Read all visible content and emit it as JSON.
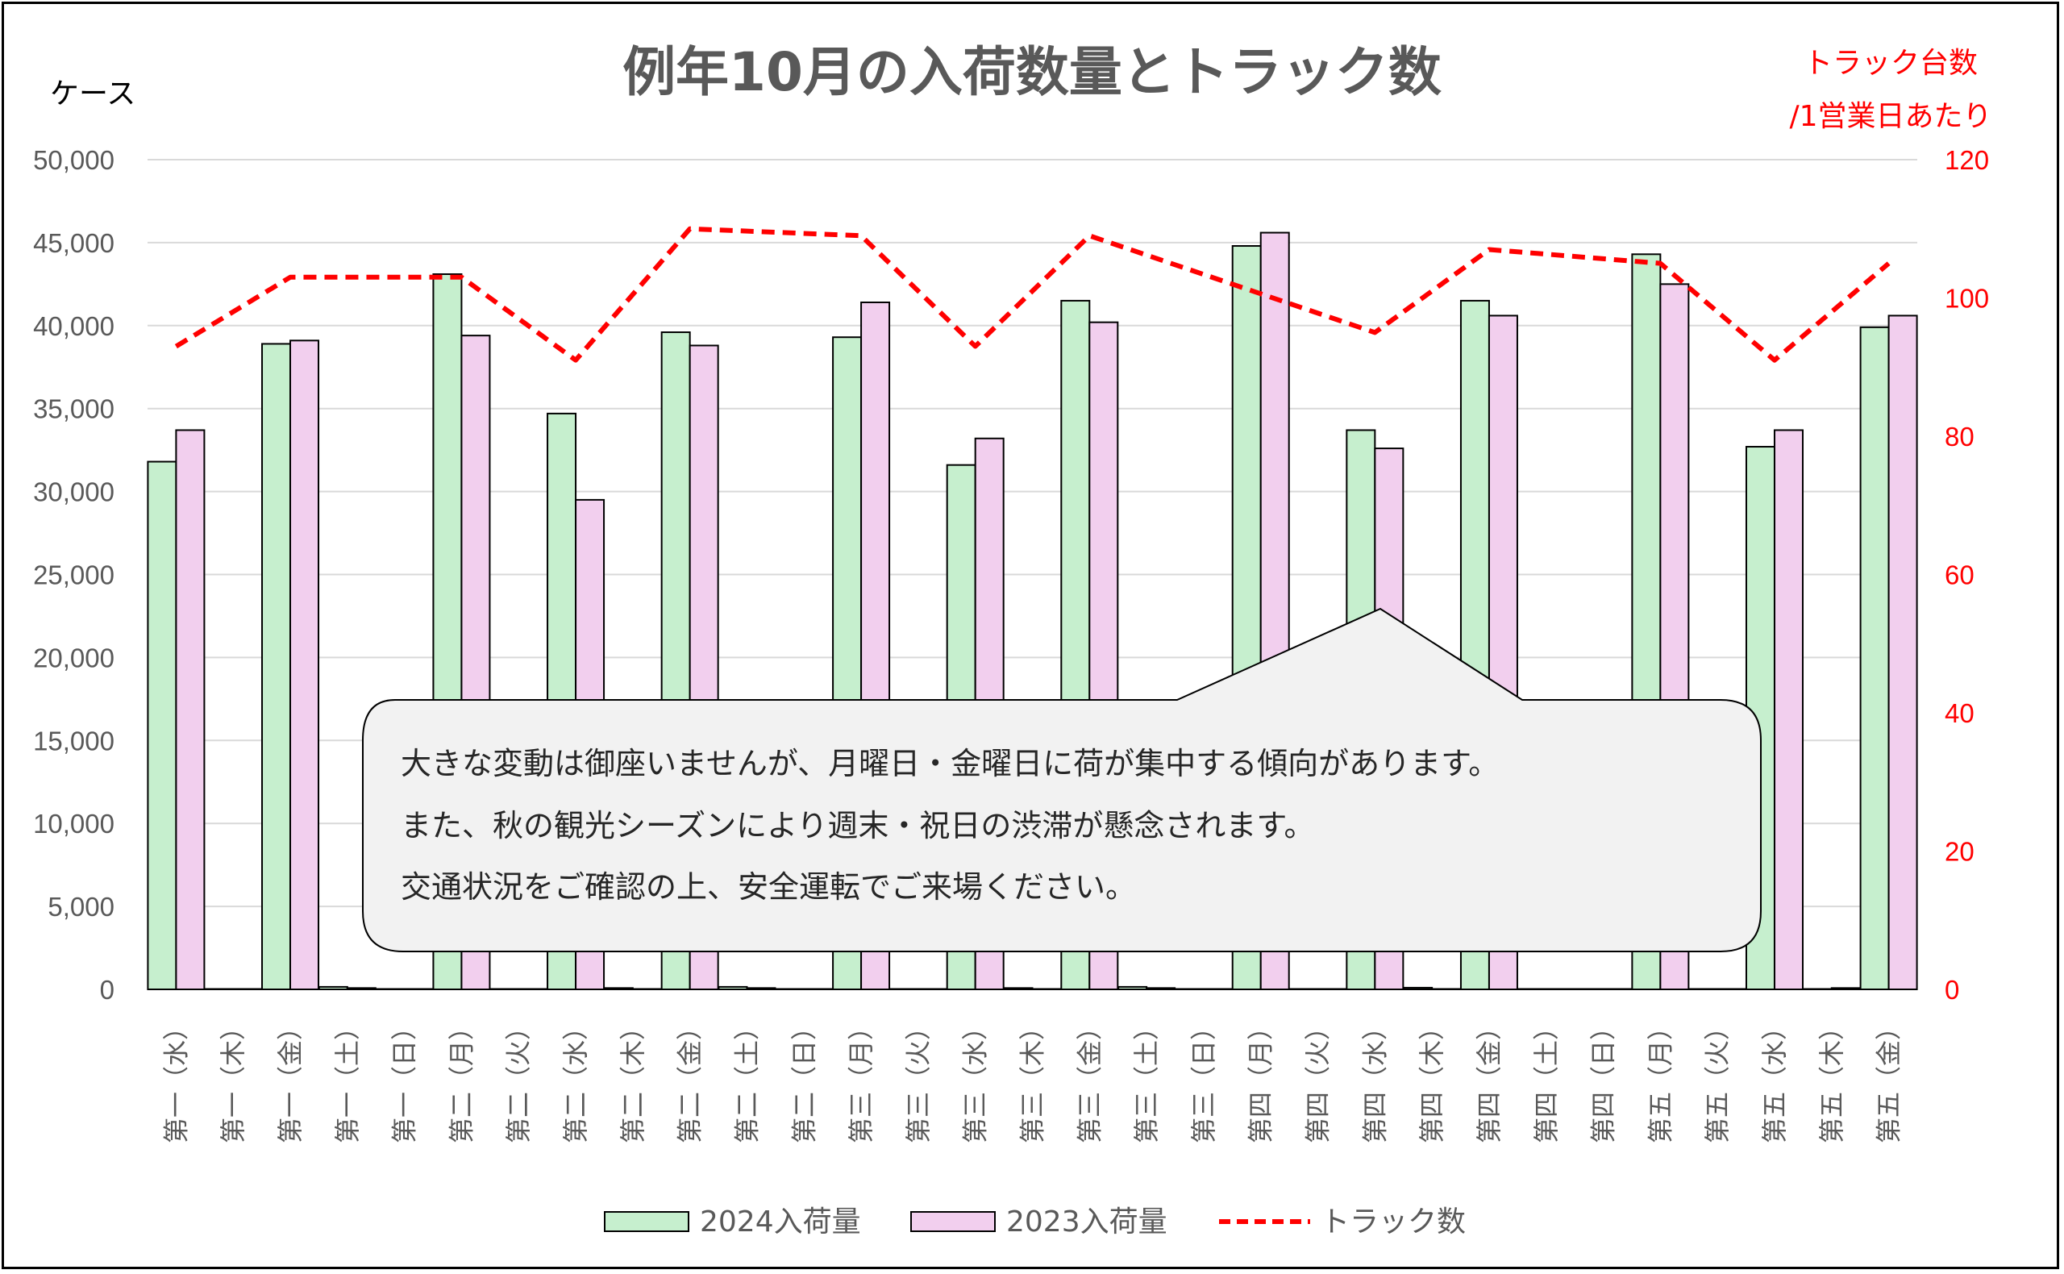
{
  "chart_data": {
    "type": "bar",
    "title": "例年10月の入荷数量とトラック数",
    "ylabel": "ケース",
    "y2label_line1": "トラック台数",
    "y2label_line2": "/1営業日あたり",
    "ylim": [
      0,
      50000
    ],
    "y2lim": [
      0,
      120
    ],
    "yticks": [
      "0",
      "5,000",
      "10,000",
      "15,000",
      "20,000",
      "25,000",
      "30,000",
      "35,000",
      "40,000",
      "45,000",
      "50,000"
    ],
    "y2ticks": [
      "0",
      "20",
      "40",
      "60",
      "80",
      "100",
      "120"
    ],
    "grid": true,
    "legend_position": "bottom",
    "categories": [
      "第一（水）",
      "第一（木）",
      "第一（金）",
      "第一（土）",
      "第一（日）",
      "第二（月）",
      "第二（火）",
      "第二（水）",
      "第二（木）",
      "第二（金）",
      "第二（土）",
      "第二（日）",
      "第三（月）",
      "第三（火）",
      "第三（水）",
      "第三（木）",
      "第三（金）",
      "第三（土）",
      "第三（日）",
      "第四（月）",
      "第四（火）",
      "第四（水）",
      "第四（木）",
      "第四（金）",
      "第四（土）",
      "第四（日）",
      "第五（月）",
      "第五（火）",
      "第五（水）",
      "第五（木）",
      "第五（金）"
    ],
    "series": [
      {
        "name": "2024入荷量",
        "type": "bar",
        "color": "#c6efce",
        "values": [
          31800,
          0,
          38900,
          150,
          0,
          43100,
          0,
          34700,
          80,
          39600,
          150,
          0,
          39300,
          0,
          31600,
          80,
          41500,
          150,
          0,
          44800,
          0,
          33700,
          100,
          41500,
          0,
          0,
          44300,
          0,
          32700,
          0,
          39900
        ]
      },
      {
        "name": "2023入荷量",
        "type": "bar",
        "color": "#f2cfee",
        "values": [
          33700,
          0,
          39100,
          80,
          0,
          39400,
          0,
          29500,
          0,
          38800,
          80,
          0,
          41400,
          0,
          33200,
          0,
          40200,
          80,
          0,
          45600,
          0,
          32600,
          0,
          40600,
          0,
          0,
          42500,
          0,
          33700,
          80,
          40600
        ]
      },
      {
        "name": "トラック数",
        "type": "line",
        "color": "#ff0000",
        "dashed": true,
        "axis": "right",
        "points": [
          {
            "category": 0,
            "value": 93
          },
          {
            "category": 2,
            "value": 103
          },
          {
            "category": 5,
            "value": 103
          },
          {
            "category": 7,
            "value": 91
          },
          {
            "category": 9,
            "value": 110
          },
          {
            "category": 12,
            "value": 109
          },
          {
            "category": 14,
            "value": 93
          },
          {
            "category": 16,
            "value": 109
          },
          {
            "category": 21,
            "value": 95
          },
          {
            "category": 23,
            "value": 107
          },
          {
            "category": 26,
            "value": 105
          },
          {
            "category": 28,
            "value": 91
          },
          {
            "category": 30,
            "value": 105
          }
        ]
      }
    ],
    "legend": [
      "2024入荷量",
      "2023入荷量",
      "トラック数"
    ]
  },
  "callout": {
    "lines": [
      "大きな変動は御座いませんが、月曜日・金曜日に荷が集中する傾向があります。",
      "また、秋の観光シーズンにより週末・祝日の渋滞が懸念されます。",
      "交通状況をご確認の上、安全運転でご来場ください。"
    ]
  }
}
